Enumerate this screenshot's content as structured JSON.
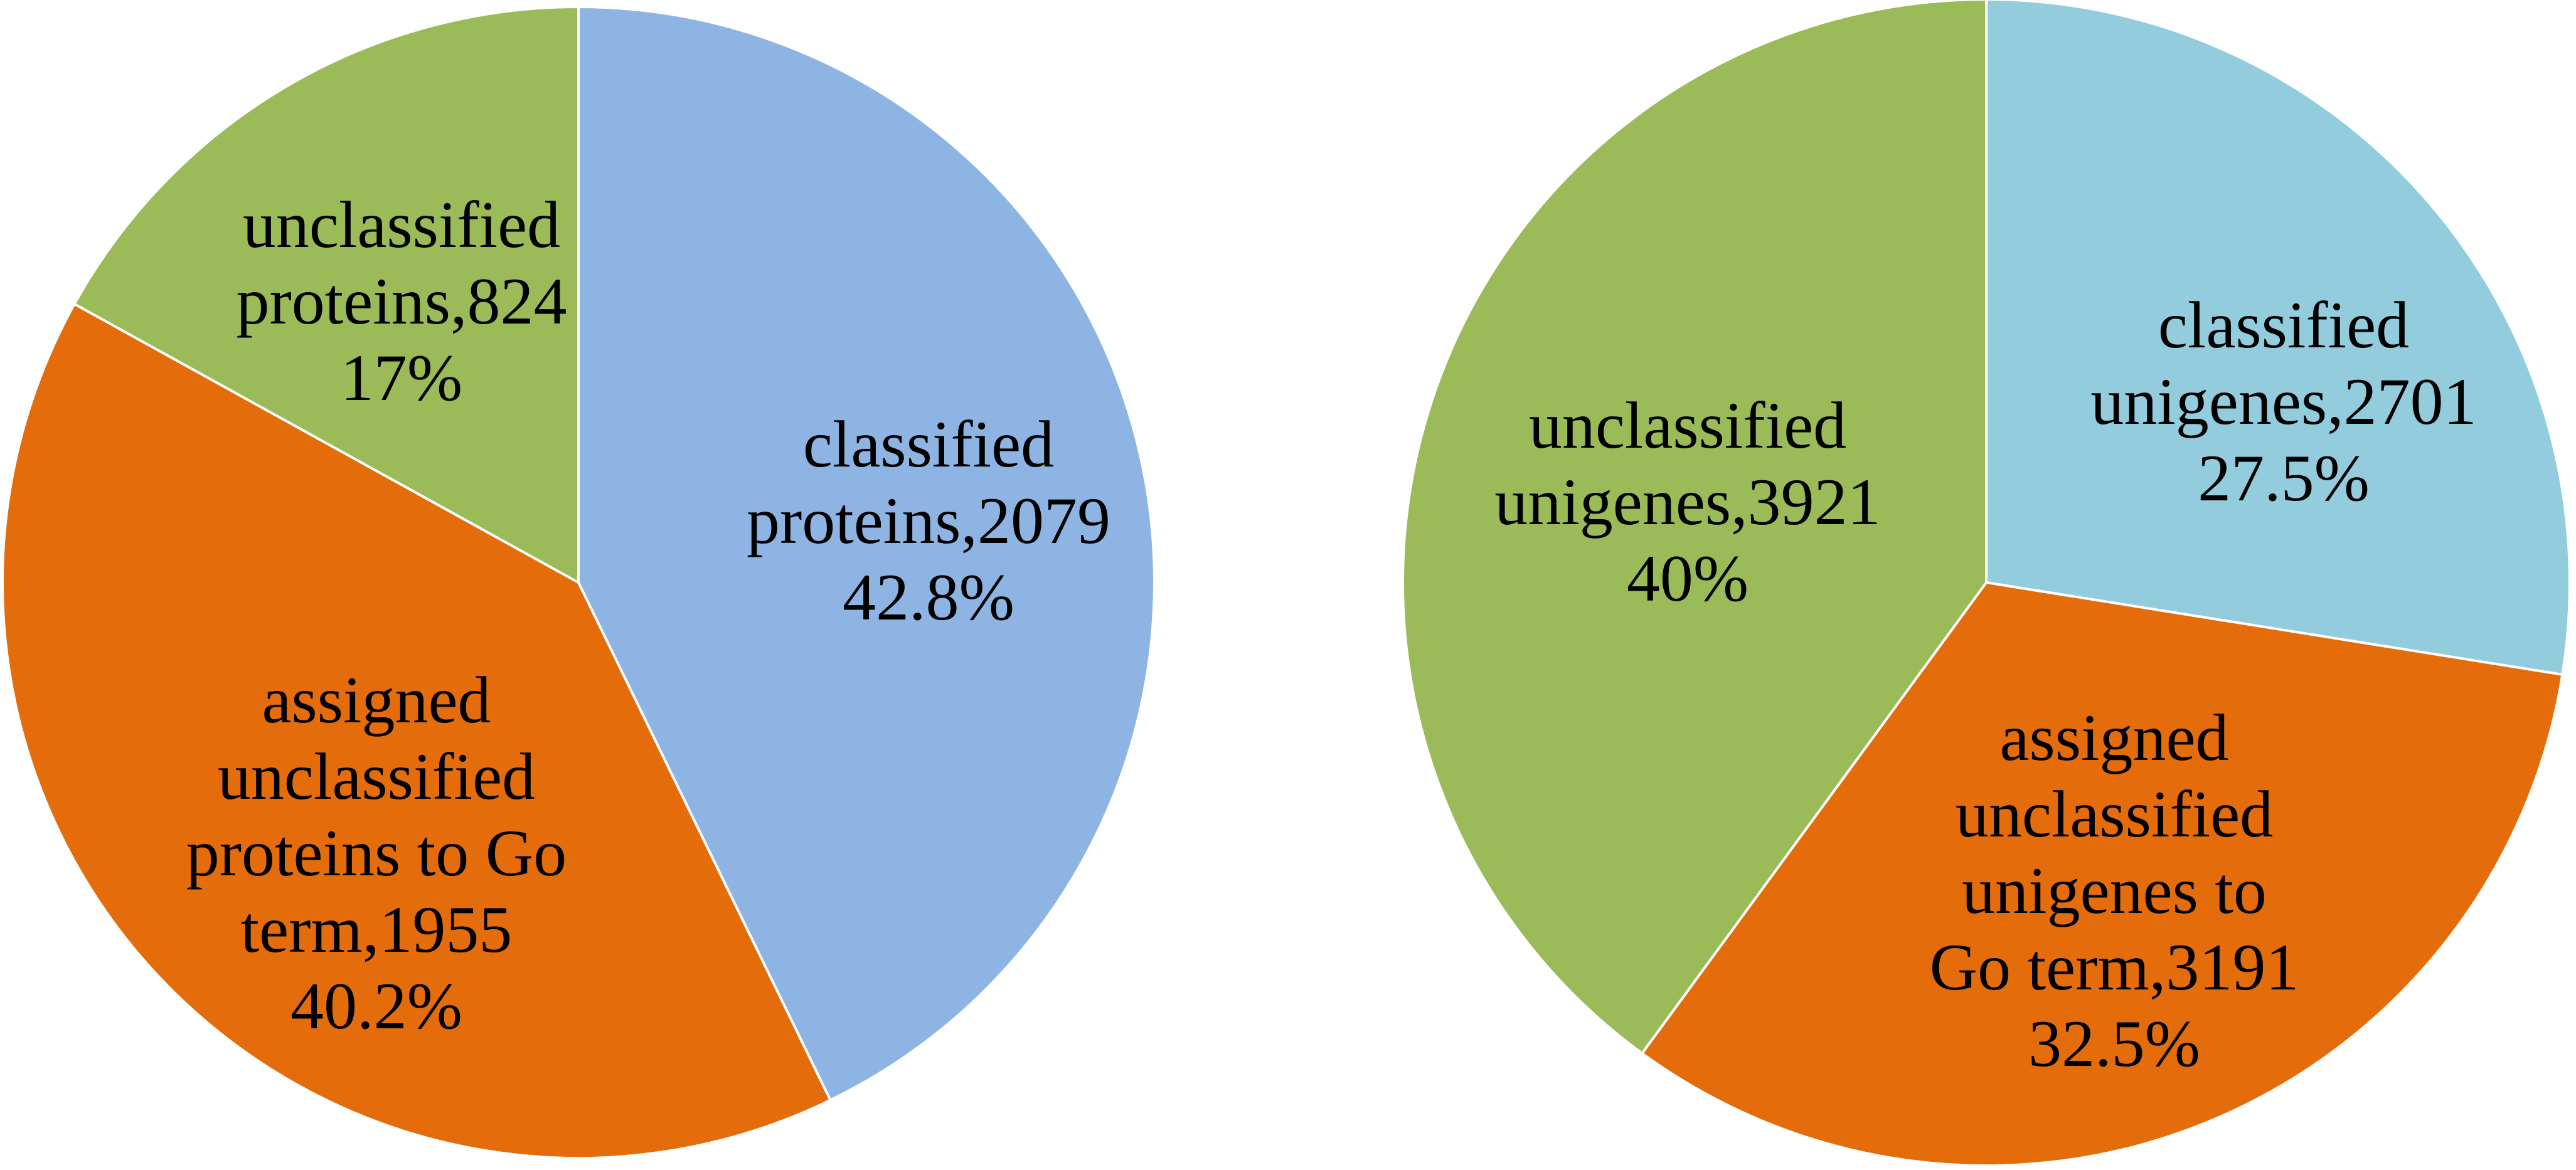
{
  "chart_data": [
    {
      "type": "pie",
      "title": "",
      "start_angle_deg": 0,
      "direction": "clockwise",
      "slices": [
        {
          "category": "classified proteins",
          "value": 2079,
          "percent_label": "42.8%",
          "color": "#8EB4E3",
          "label_lines": [
            "classified",
            "proteins,2079",
            "42.8%"
          ]
        },
        {
          "category": "assigned unclassified proteins to Go term",
          "value": 1955,
          "percent_label": "40.2%",
          "color": "#E46C0A",
          "label_lines": [
            "assigned",
            "unclassified",
            "proteins to Go",
            "term,1955",
            "40.2%"
          ]
        },
        {
          "category": "unclassified proteins",
          "value": 824,
          "percent_label": "17%",
          "color": "#9BBB59",
          "label_lines": [
            "unclassified",
            "proteins,824",
            "17%"
          ]
        }
      ]
    },
    {
      "type": "pie",
      "title": "",
      "start_angle_deg": 0,
      "direction": "clockwise",
      "slices": [
        {
          "category": "classified unigenes",
          "value": 2701,
          "percent_label": "27.5%",
          "color": "#93CDDD",
          "label_lines": [
            "classified",
            "unigenes,2701",
            "27.5%"
          ]
        },
        {
          "category": "assigned unclassified unigenes to Go term",
          "value": 3191,
          "percent_label": "32.5%",
          "color": "#E46C0A",
          "label_lines": [
            "assigned",
            "unclassified",
            "unigenes to",
            "Go term,3191",
            "32.5%"
          ]
        },
        {
          "category": "unclassified unigenes",
          "value": 3921,
          "percent_label": "40%",
          "color": "#9BBB59",
          "label_lines": [
            "unclassified",
            "unigenes,3921",
            "40%"
          ]
        }
      ]
    }
  ]
}
